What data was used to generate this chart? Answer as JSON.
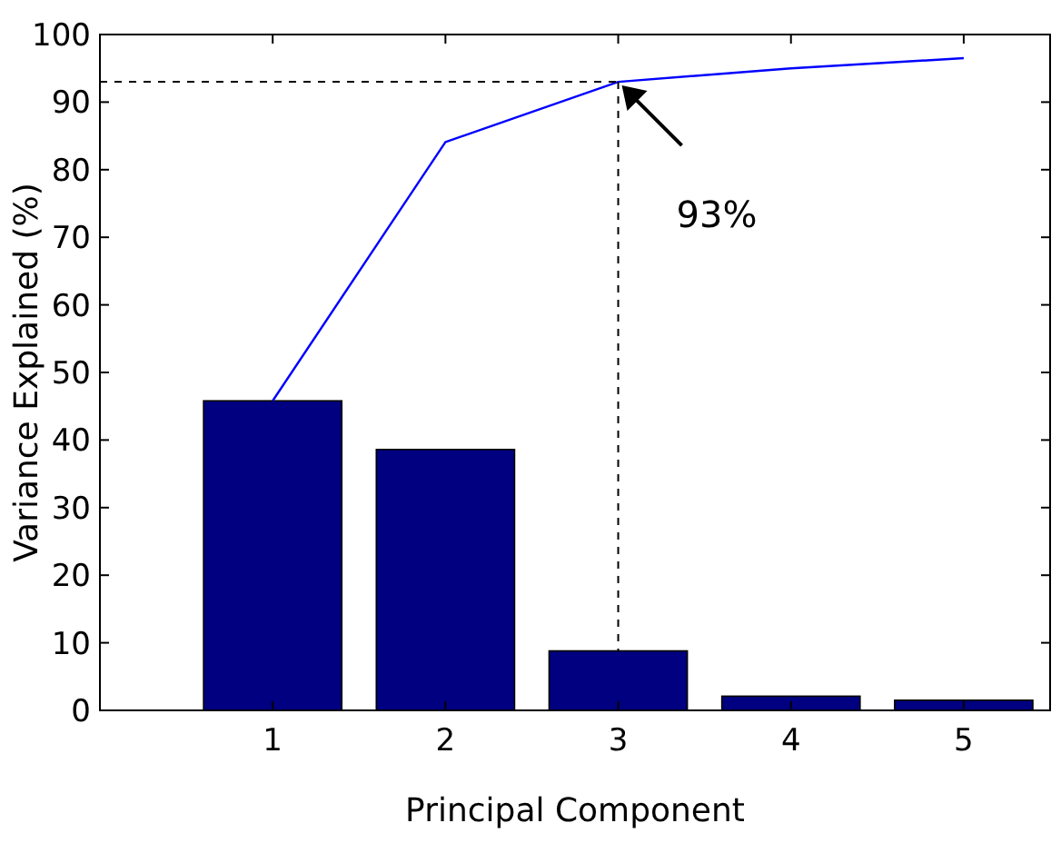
{
  "chart_data": {
    "type": "bar",
    "xlabel": "Principal Component",
    "ylabel": "Variance Explained (%)",
    "x": [
      1,
      2,
      3,
      4,
      5
    ],
    "xlim": [
      0,
      5.5
    ],
    "xticks": [
      1,
      2,
      3,
      4,
      5
    ],
    "ylim": [
      0,
      100
    ],
    "yticks": [
      0,
      10,
      20,
      30,
      40,
      50,
      60,
      70,
      80,
      90,
      100
    ],
    "series": [
      {
        "color": "#000080",
        "values": [
          45.8,
          38.6,
          8.8,
          2.1,
          1.5
        ]
      },
      {
        "type": "line",
        "color": "#0000ff",
        "values": [
          45.8,
          84.1,
          93,
          95,
          96.5
        ]
      }
    ],
    "ref_lines": [
      {
        "axis": "y",
        "value": 93,
        "line_style": "dashed",
        "color": "#000000"
      },
      {
        "axis": "x",
        "value": 3,
        "line_style": "dashed",
        "color": "#000000"
      }
    ],
    "annotations": [
      {
        "text": "93%",
        "x": 3,
        "y": 93
      }
    ],
    "grid": false,
    "legend": false
  }
}
